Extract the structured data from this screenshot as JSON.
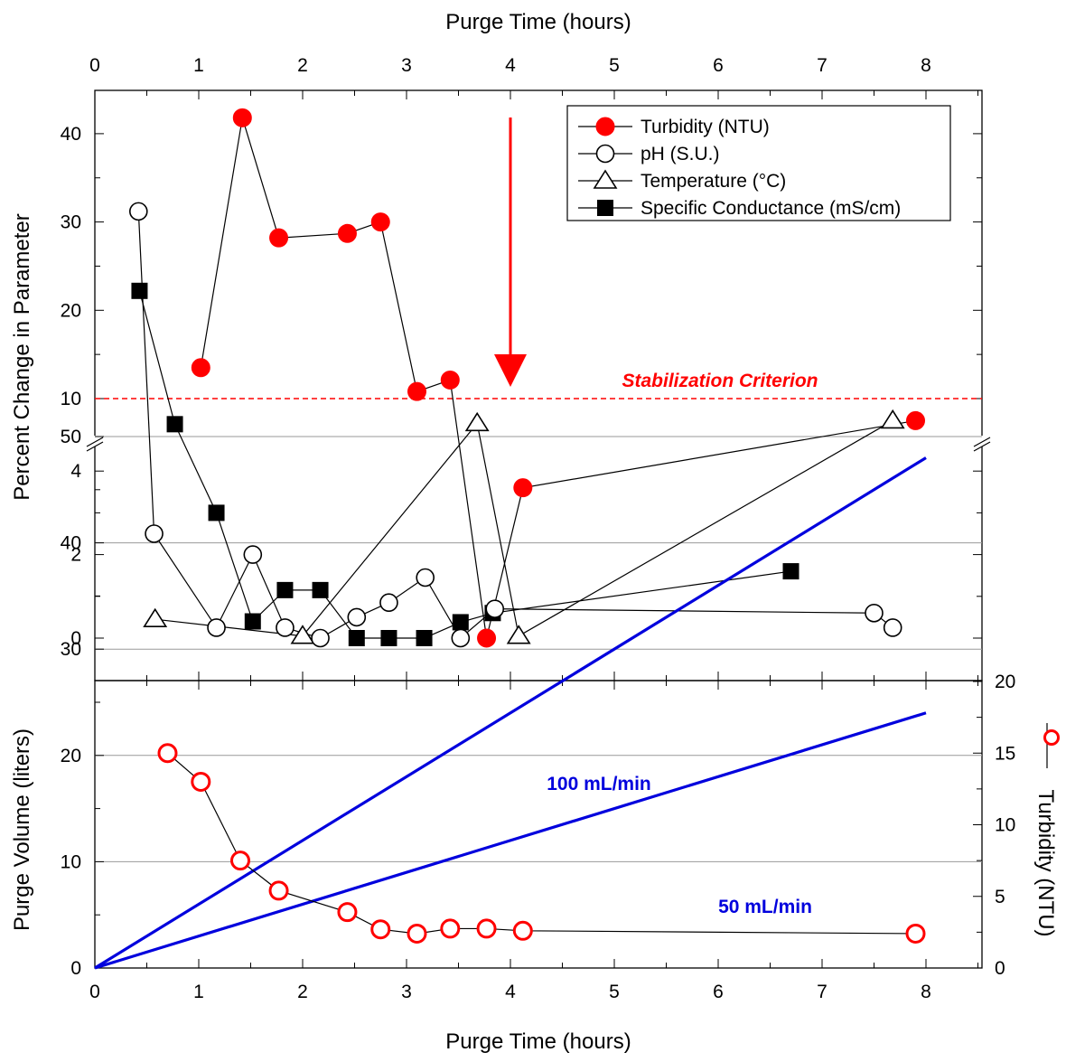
{
  "colors": {
    "turbidity": "#ff0000",
    "rate": "#0000dd",
    "ink": "#000000",
    "grid": "#999999"
  },
  "chart_data": [
    {
      "type": "line",
      "title": "",
      "xlabel_top": "Purge Time (hours)",
      "ylabel": "Percent Change in Parameter",
      "xlim": [
        0,
        8.5
      ],
      "x_ticks": [
        "0",
        "1",
        "2",
        "3",
        "4",
        "5",
        "6",
        "7",
        "8"
      ],
      "y_ticks_upper": [
        "10",
        "20",
        "30",
        "40"
      ],
      "y_ticks_lower": [
        "0",
        "2",
        "4"
      ],
      "y_axis_break": [
        4.5,
        7.5
      ],
      "legend_position": "top-right",
      "series": [
        {
          "name": "Turbidity (NTU)",
          "marker": "filled-circle",
          "color": "#ff0000",
          "x": [
            1.02,
            1.42,
            1.77,
            2.43,
            2.75,
            3.1,
            3.42,
            3.77,
            4.12,
            7.9
          ],
          "y": [
            13.5,
            41.8,
            28.2,
            28.7,
            30.0,
            10.8,
            12.1,
            0.0,
            3.6,
            7.5
          ]
        },
        {
          "name": "pH (S.U.)",
          "marker": "open-circle",
          "color": "#000000",
          "x": [
            0.42,
            0.57,
            1.17,
            1.52,
            1.83,
            2.17,
            2.52,
            2.83,
            3.18,
            3.52,
            3.85,
            7.5,
            7.68
          ],
          "y": [
            31.2,
            2.5,
            0.25,
            2.0,
            0.25,
            0.0,
            0.5,
            0.85,
            1.45,
            0.0,
            0.7,
            0.6,
            0.25
          ]
        },
        {
          "name": "Temperature (°C)",
          "marker": "open-triangle",
          "color": "#000000",
          "x": [
            0.58,
            2.0,
            3.68,
            4.08,
            7.68
          ],
          "y": [
            0.45,
            0.05,
            7.2,
            0.05,
            7.5
          ]
        },
        {
          "name": "Specific Conductance (mS/cm)",
          "marker": "filled-square",
          "color": "#000000",
          "x": [
            0.43,
            0.77,
            1.17,
            1.52,
            1.83,
            2.17,
            2.52,
            2.83,
            3.17,
            3.52,
            3.83,
            6.7
          ],
          "y": [
            22.2,
            7.1,
            3.0,
            0.4,
            1.15,
            1.15,
            0.0,
            0.0,
            0.0,
            0.38,
            0.6,
            1.6
          ]
        }
      ],
      "reference_line": {
        "y": 10,
        "label": "Stabilization Criterion"
      },
      "arrow_x": 4.0
    },
    {
      "type": "line",
      "title": "",
      "xlabel": "Purge Time (hours)",
      "ylabel": "Purge Volume (liters)",
      "y2label": "Turbidity (NTU)",
      "xlim": [
        0,
        8.5
      ],
      "ylim": [
        0,
        55
      ],
      "y2lim": [
        0,
        20
      ],
      "x_ticks": [
        "0",
        "1",
        "2",
        "3",
        "4",
        "5",
        "6",
        "7",
        "8"
      ],
      "y_ticks": [
        "0",
        "10",
        "20",
        "30",
        "40",
        "50"
      ],
      "y2_ticks": [
        "0",
        "5",
        "10",
        "15",
        "20"
      ],
      "grid": "horizontal",
      "series": [
        {
          "name": "100 mL/min",
          "axis": "left",
          "color": "#0000dd",
          "x": [
            0,
            8
          ],
          "y": [
            0,
            48
          ]
        },
        {
          "name": "50 mL/min",
          "axis": "left",
          "color": "#0000dd",
          "x": [
            0,
            8
          ],
          "y": [
            0,
            24
          ]
        },
        {
          "name": "Turbidity (NTU)",
          "axis": "right",
          "marker": "open-circle",
          "color": "#ff0000",
          "x": [
            0.7,
            1.02,
            1.4,
            1.77,
            2.43,
            2.75,
            3.1,
            3.42,
            3.77,
            4.12,
            7.9
          ],
          "y": [
            15.0,
            13.0,
            7.5,
            5.4,
            3.9,
            2.7,
            2.4,
            2.75,
            2.75,
            2.6,
            2.4
          ]
        }
      ]
    }
  ]
}
